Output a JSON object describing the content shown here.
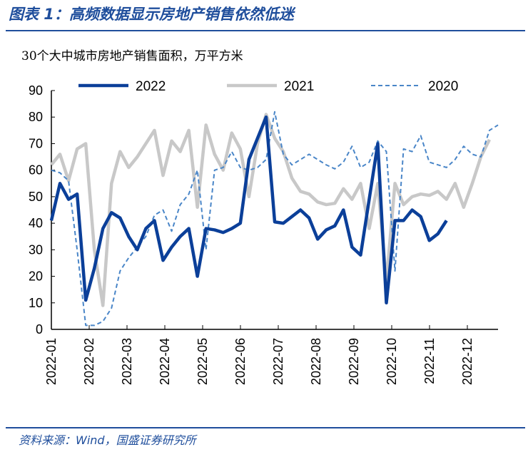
{
  "title": "图表 1：高频数据显示房地产销售依然低迷",
  "source": "资料来源：Wind，国盛证券研究所",
  "chart_data": {
    "type": "line",
    "title": "30个大中城市房地产销售面积，万平方米",
    "ylim": [
      0,
      90
    ],
    "yticks": [
      "0",
      "10",
      "20",
      "30",
      "40",
      "50",
      "60",
      "70",
      "80",
      "90"
    ],
    "xticks": [
      "2022-01",
      "2022-02",
      "2022-03",
      "2022-04",
      "2022-05",
      "2022-06",
      "2022-07",
      "2022-08",
      "2022-09",
      "2022-10",
      "2022-11",
      "2022-12"
    ],
    "x_unit": "week of year (1-53)",
    "legend_position": "top",
    "series": [
      {
        "name": "2022",
        "color": "#0b3f99",
        "style": "solid-thick",
        "values": [
          41,
          55,
          49,
          51,
          11,
          23,
          38,
          44,
          42,
          35,
          30,
          38,
          41,
          26,
          31,
          35,
          38,
          20,
          38,
          37.5,
          36.5,
          38,
          40,
          64,
          72,
          80,
          40.5,
          40,
          42.5,
          45,
          42,
          34,
          37.5,
          39,
          45,
          31,
          28,
          49,
          70,
          10,
          41,
          41,
          45,
          42.5,
          33.5,
          36,
          41
        ]
      },
      {
        "name": "2021",
        "color": "#c8c8c8",
        "style": "solid-thick",
        "values": [
          62,
          66,
          56,
          68,
          70,
          30,
          9,
          55,
          67,
          61,
          65,
          70,
          75,
          58,
          71,
          67,
          75,
          46,
          77,
          66,
          60,
          74,
          68,
          50,
          70,
          81,
          72,
          67,
          57,
          52,
          51,
          48,
          47,
          47.5,
          53,
          49,
          55,
          38,
          55,
          18,
          55,
          47,
          50,
          51,
          50.5,
          52,
          49,
          55,
          46,
          55,
          65,
          71.5
        ]
      },
      {
        "name": "2020",
        "color": "#4a86c8",
        "style": "dashed",
        "values": [
          60,
          59,
          56,
          30,
          1.5,
          1.5,
          3,
          8,
          22,
          27,
          31,
          35,
          43,
          45,
          37,
          47,
          51,
          60,
          30,
          60,
          61,
          67,
          61,
          60,
          61,
          64,
          82,
          66,
          62,
          64,
          66,
          64,
          62,
          60.5,
          63,
          69,
          61,
          63,
          71,
          67,
          22,
          68,
          67,
          73,
          63,
          62,
          61,
          64,
          69,
          66,
          65,
          75,
          77
        ]
      }
    ]
  }
}
